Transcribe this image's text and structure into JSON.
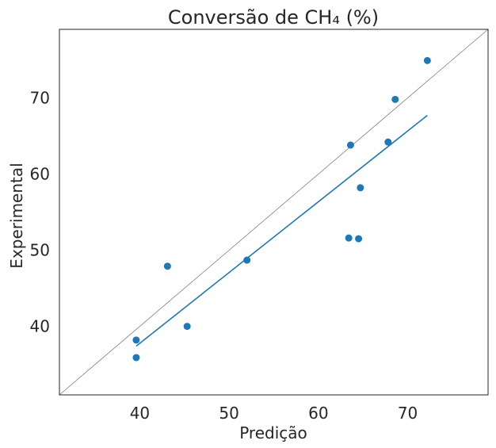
{
  "chart_data": {
    "type": "scatter",
    "title": "Conversão de CH₄ (%)",
    "xlabel": "Predição",
    "ylabel": "Experimental",
    "xlim": [
      31,
      79
    ],
    "ylim": [
      31,
      79
    ],
    "xticks": [
      40,
      50,
      60,
      70
    ],
    "yticks": [
      40,
      50,
      60,
      70
    ],
    "grid": false,
    "points": [
      {
        "x": 39.6,
        "y": 38.2
      },
      {
        "x": 39.6,
        "y": 35.9
      },
      {
        "x": 43.1,
        "y": 47.9
      },
      {
        "x": 45.3,
        "y": 40.0
      },
      {
        "x": 52.0,
        "y": 48.7
      },
      {
        "x": 63.4,
        "y": 51.6
      },
      {
        "x": 63.6,
        "y": 63.8
      },
      {
        "x": 64.5,
        "y": 51.5
      },
      {
        "x": 64.7,
        "y": 58.2
      },
      {
        "x": 67.8,
        "y": 64.2
      },
      {
        "x": 68.6,
        "y": 69.8
      },
      {
        "x": 72.2,
        "y": 74.9
      }
    ],
    "fit_line": [
      {
        "x": 39.6,
        "y": 37.4
      },
      {
        "x": 72.2,
        "y": 67.7
      }
    ],
    "identity_line": [
      {
        "x": 31,
        "y": 31
      },
      {
        "x": 79,
        "y": 79
      }
    ],
    "colors": {
      "points": "#1f77b4",
      "fit": "#1f77b4",
      "identity": "#7f7f7f",
      "frame": "#262626"
    }
  }
}
